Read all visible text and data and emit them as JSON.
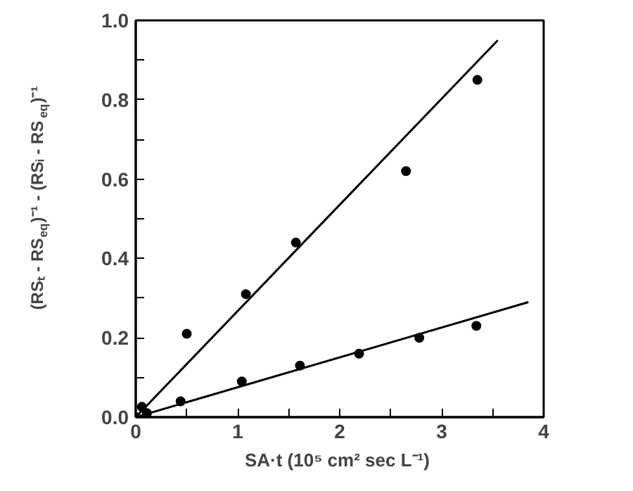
{
  "chart_data": {
    "type": "scatter",
    "xlabel": "SA·t  (10⁵ cm² sec L⁻¹)",
    "ylabel": "(RSₜ - RS$_{eq}$)⁻¹ - (RSᵢ - RS$_{eq}$)⁻¹",
    "xlim": [
      0,
      4
    ],
    "ylim": [
      0,
      1.0
    ],
    "xticks": [
      0,
      {
        "value": 0.5,
        "label": null
      },
      1,
      {
        "value": 1.5,
        "label": null
      },
      2,
      {
        "value": 2.5,
        "label": null
      },
      3,
      {
        "value": 3.5,
        "label": null
      },
      4
    ],
    "yticks": [
      {
        "value": 0,
        "label": "0.0"
      },
      {
        "value": 0.1,
        "label": null
      },
      0.2,
      {
        "value": 0.3,
        "label": null
      },
      0.4,
      {
        "value": 0.5,
        "label": null
      },
      0.6,
      {
        "value": 0.7,
        "label": null
      },
      0.8,
      {
        "value": 0.9,
        "label": null
      },
      {
        "value": 1.0,
        "label": "1.0"
      }
    ],
    "grid": false,
    "series": [
      {
        "color": "#000000",
        "marker": "circle",
        "x": [
          0,
          0.06,
          0.5,
          1.08,
          1.57,
          2.65,
          3.35
        ],
        "values": [
          0,
          0.026,
          0.21,
          0.31,
          0.44,
          0.62,
          0.85
        ]
      },
      {
        "color": "#000000",
        "marker": "circle",
        "x": [
          0.11,
          0.44,
          1.04,
          1.61,
          2.19,
          2.78,
          3.34
        ],
        "values": [
          0.01,
          0.04,
          0.09,
          0.13,
          0.16,
          0.2,
          0.23
        ]
      },
      {
        "type": "line",
        "color": "#000000",
        "x": [
          0,
          3.55
        ],
        "values": [
          0,
          0.95
        ]
      },
      {
        "type": "line",
        "color": "#000000",
        "x": [
          0,
          3.85
        ],
        "values": [
          0,
          0.29
        ]
      }
    ]
  }
}
